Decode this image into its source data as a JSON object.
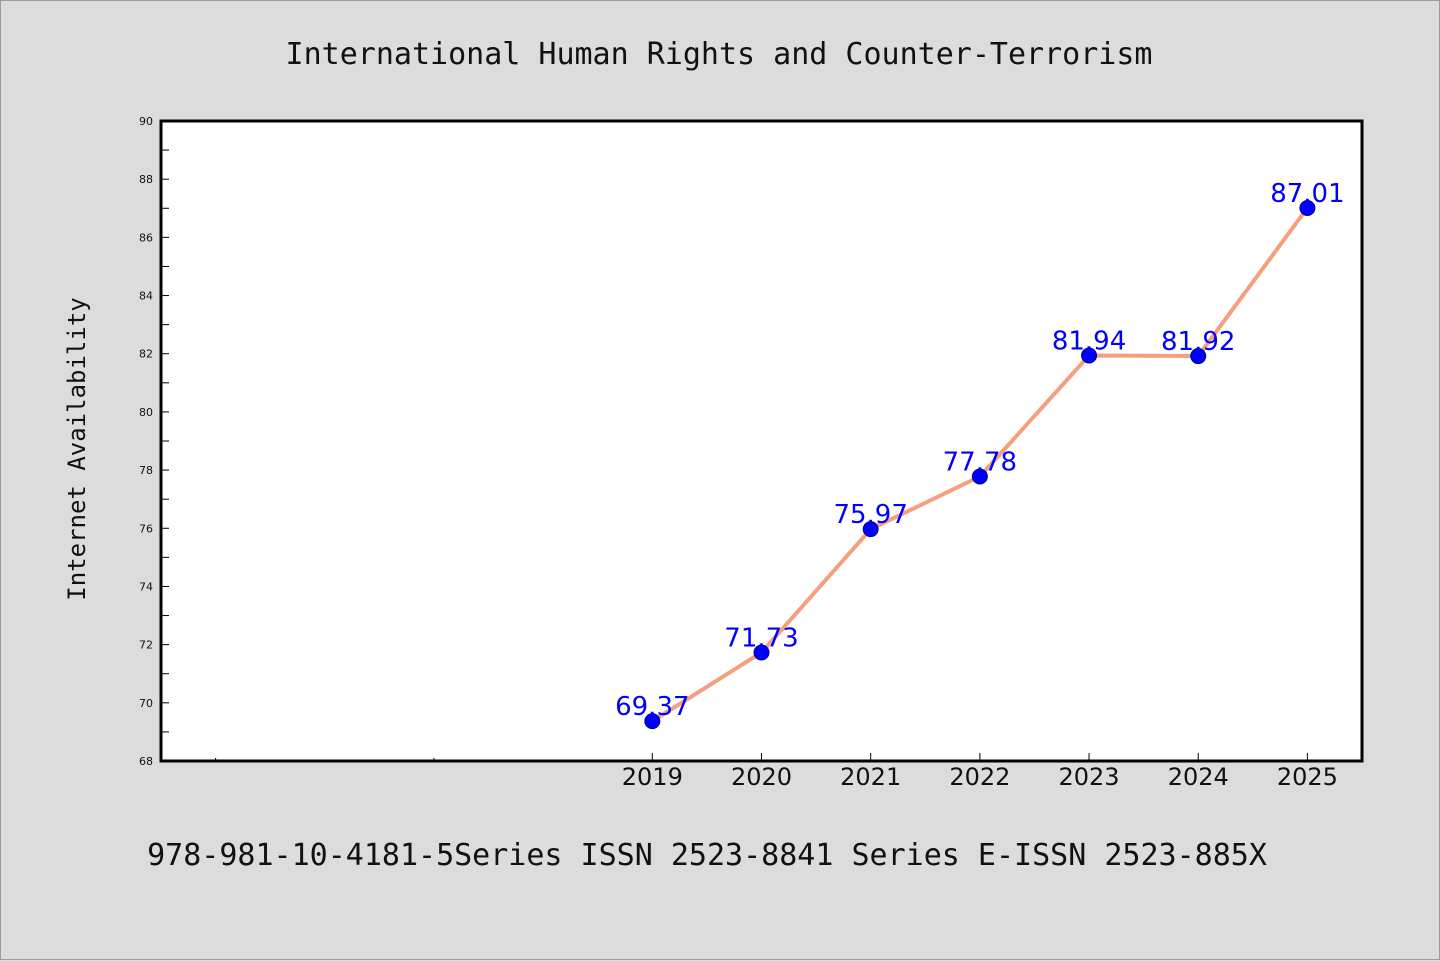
{
  "chart_data": {
    "type": "line",
    "title": "International Human Rights and Counter-Terrorism",
    "ylabel": "Internet Availability",
    "xlabel": "",
    "caption": "978-981-10-4181-5Series ISSN 2523-8841 Series E-ISSN 2523-885X",
    "x": [
      "2019",
      "2020",
      "2021",
      "2022",
      "2023",
      "2024",
      "2025"
    ],
    "values": [
      69.37,
      71.73,
      75.97,
      77.78,
      81.94,
      81.92,
      87.01
    ],
    "data_labels": [
      "69.37",
      "71.73",
      "75.97",
      "77.78",
      "81.94",
      "81.92",
      "87.01"
    ],
    "x_positions": [
      5,
      6,
      7,
      8,
      9,
      10,
      11
    ],
    "xlim": [
      0.5,
      11.5
    ],
    "minor_x_ticks": [
      1,
      3
    ],
    "ylim": [
      68,
      90
    ],
    "y_ticks": [
      68,
      70,
      72,
      74,
      76,
      78,
      80,
      82,
      84,
      86,
      88,
      90
    ],
    "y_tick_labels": [
      "68",
      "70",
      "72",
      "74",
      "76",
      "78",
      "80",
      "82",
      "84",
      "86",
      "88",
      "90"
    ],
    "grid": false,
    "legend": "none",
    "colors": {
      "line": "#f4a07e",
      "marker": "#0000ff",
      "label": "#0000ff",
      "background": "#dcdcdc",
      "plot_area": "#ffffff"
    }
  }
}
